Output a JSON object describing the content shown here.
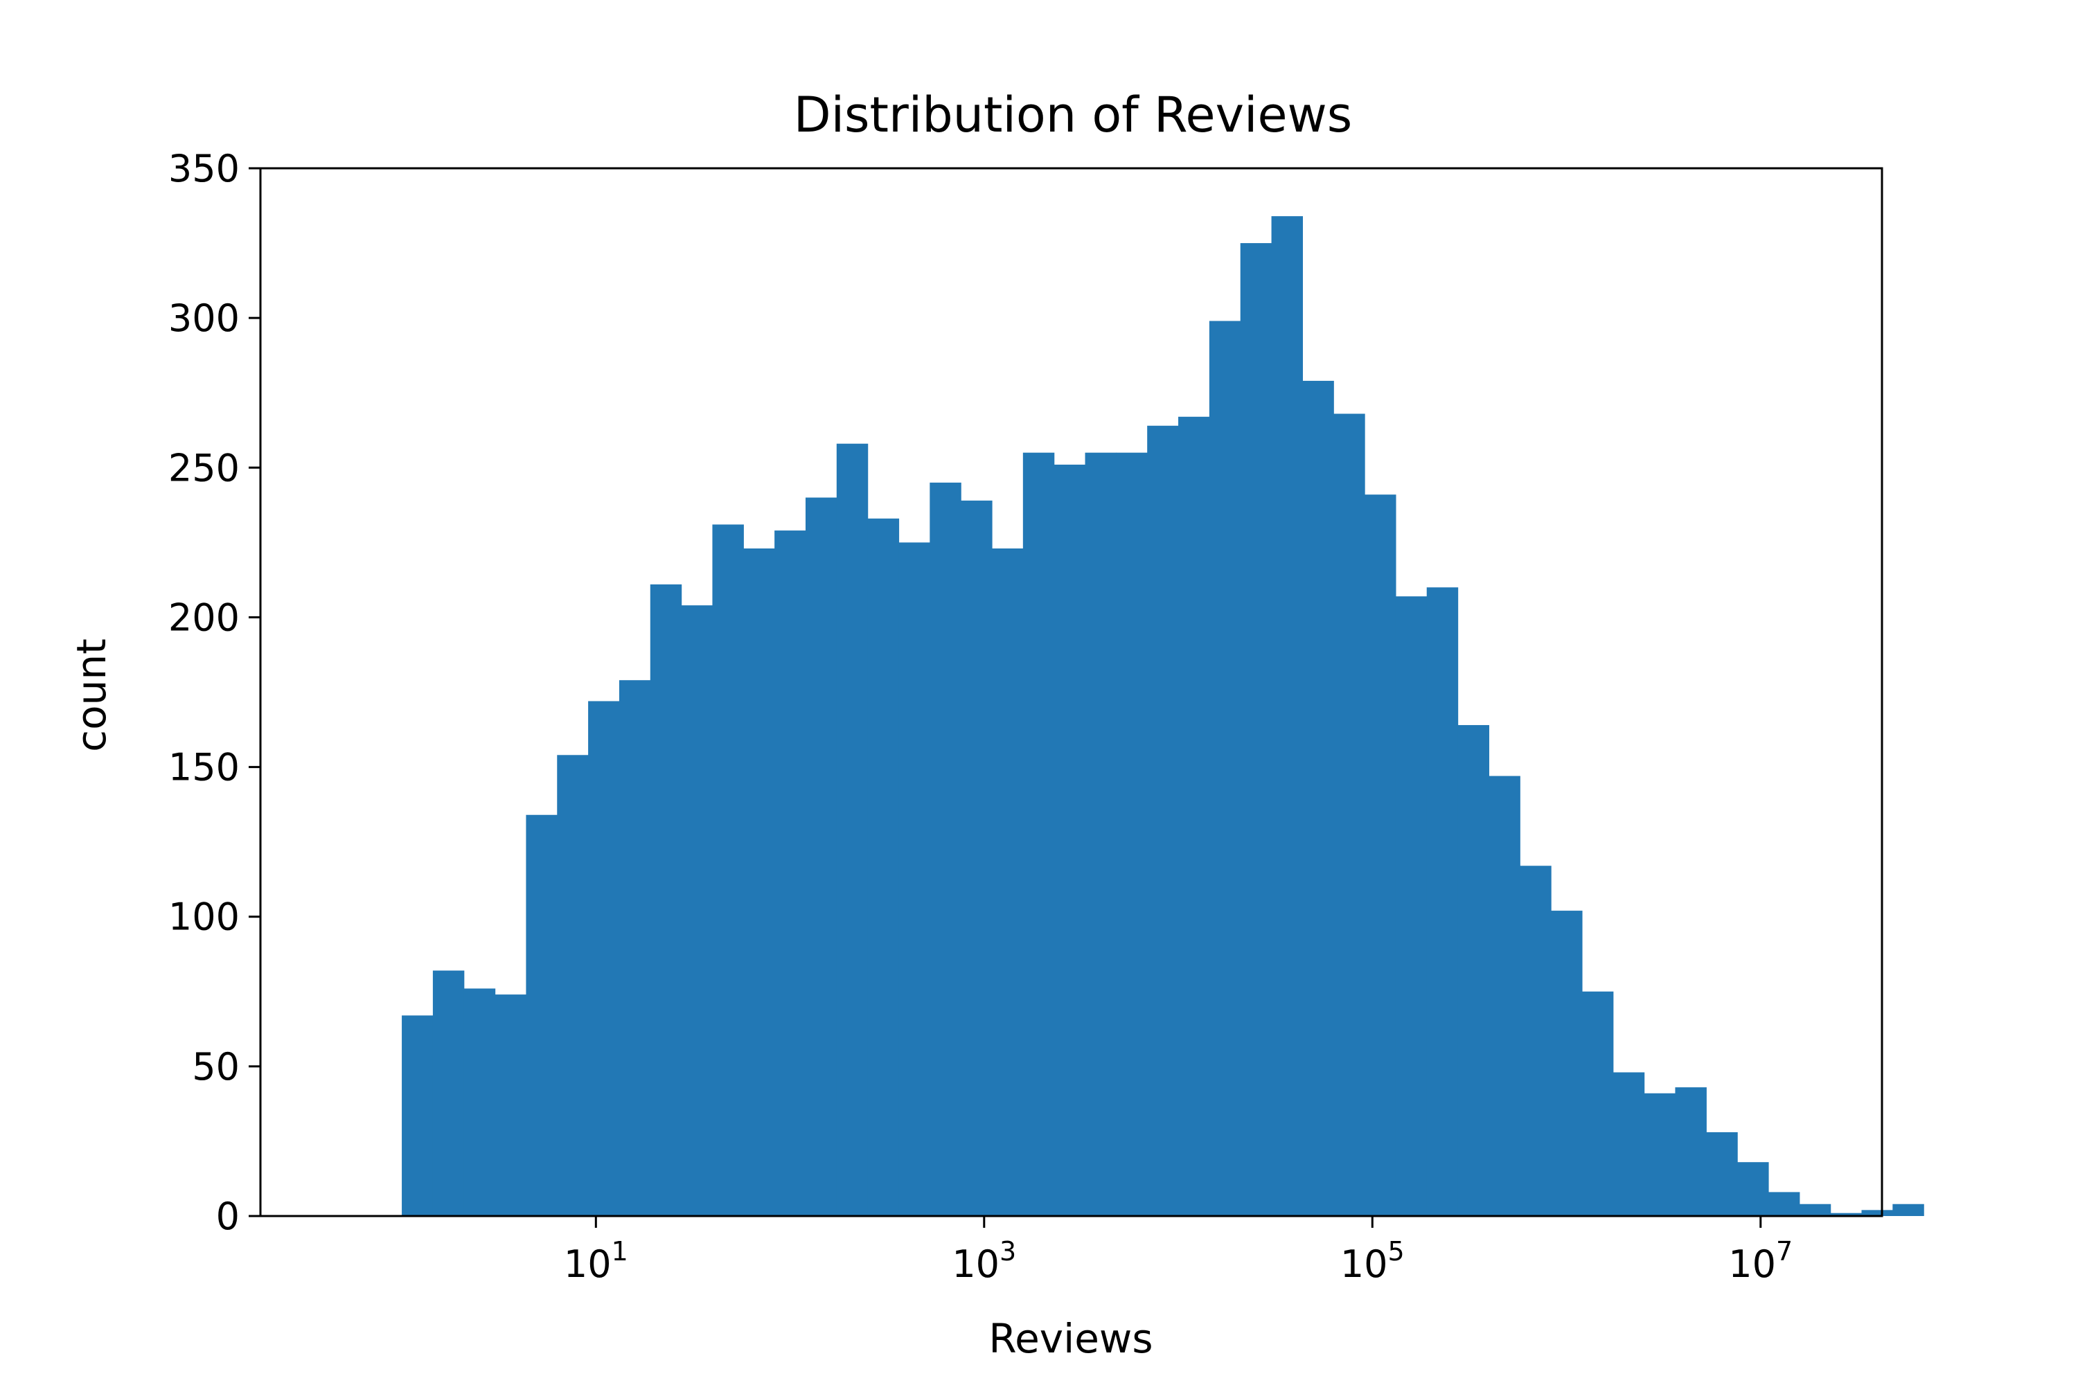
{
  "chart_data": {
    "type": "bar",
    "title": "Distribution of Reviews",
    "xlabel": "Reviews",
    "ylabel": "count",
    "xscale": "log",
    "xlim": [
      0.187,
      42200000
    ],
    "ylim": [
      0,
      350
    ],
    "x_ticks": [
      {
        "value": 10,
        "base": "10",
        "exp": "1"
      },
      {
        "value": 1000,
        "base": "10",
        "exp": "3"
      },
      {
        "value": 100000,
        "base": "10",
        "exp": "5"
      },
      {
        "value": 10000000,
        "base": "10",
        "exp": "7"
      }
    ],
    "y_ticks": [
      "0",
      "50",
      "100",
      "150",
      "200",
      "250",
      "300",
      "350"
    ],
    "bar_color": "#2278b5",
    "bins_log10": {
      "start": 0,
      "end": 7.84,
      "count": 49
    },
    "values": [
      67,
      82,
      76,
      74,
      134,
      154,
      172,
      179,
      211,
      204,
      231,
      223,
      229,
      240,
      258,
      233,
      225,
      245,
      239,
      223,
      255,
      251,
      255,
      255,
      264,
      267,
      299,
      325,
      334,
      279,
      268,
      241,
      207,
      210,
      164,
      147,
      117,
      102,
      75,
      48,
      41,
      43,
      28,
      18,
      8,
      4,
      1,
      2,
      4
    ],
    "grid": false,
    "legend": "none"
  }
}
